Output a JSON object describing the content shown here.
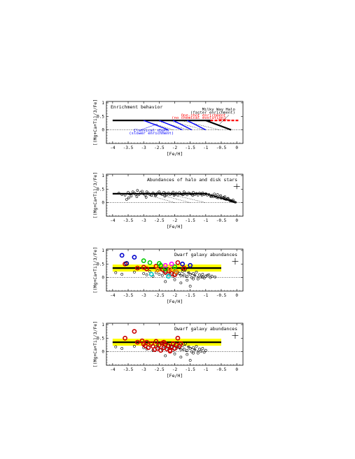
{
  "chart_data": [
    {
      "type": "line",
      "title": "Enrichment behavior",
      "xlabel": "[Fe/H]",
      "ylabel": "[(Mg+Ca+Ti)/3/Fe]",
      "xlim": [
        -4.2,
        0.2
      ],
      "ylim": [
        -0.5,
        1.05
      ],
      "xticks": [
        -4,
        -3.5,
        -3,
        -2.5,
        -2,
        -1.5,
        -1,
        -0.5,
        0
      ],
      "xtick_labels": [
        "-4",
        "-3.5",
        "-3",
        "-2.5",
        "-2",
        "-1.5",
        "-1",
        "-0.5",
        "0"
      ],
      "yticks": [
        0,
        0.5,
        1
      ],
      "ytick_labels": [
        "0",
        "0.5",
        "1"
      ],
      "plateau": {
        "x": [
          -4.0,
          -0.85
        ],
        "y": 0.35
      },
      "zero_line": 0,
      "series": [
        {
          "name": "Milky Way Halo (faster enrichment)",
          "color": "#000000",
          "width": 2.2,
          "x": [
            -1.0,
            -0.18
          ],
          "y": [
            0.35,
            0.0
          ]
        },
        {
          "name": "One-shot enrichment (no chemical evolution)",
          "color": "#ff0000",
          "dashed": true,
          "width": 2.2,
          "x": [
            -0.85,
            0.05
          ],
          "y": [
            0.35,
            0.35
          ]
        }
      ],
      "slopes_blue": [
        {
          "x": [
            -3.0,
            -2.2
          ],
          "y": [
            0.35,
            0.0
          ]
        },
        {
          "x": [
            -2.5,
            -1.75
          ],
          "y": [
            0.35,
            0.0
          ]
        },
        {
          "x": [
            -2.05,
            -1.45
          ],
          "y": [
            0.35,
            0.0
          ]
        },
        {
          "x": [
            -1.6,
            -1.0
          ],
          "y": [
            0.35,
            0.0
          ]
        }
      ],
      "blue_color": "#0000ff",
      "hatch_dotted": [
        {
          "x": [
            -3.0,
            -2.05
          ],
          "y": [
            0.35,
            0.0
          ]
        },
        {
          "x": [
            -2.6,
            -1.55
          ],
          "y": [
            0.35,
            0.0
          ]
        },
        {
          "x": [
            -2.2,
            -1.05
          ],
          "y": [
            0.35,
            0.0
          ]
        },
        {
          "x": [
            -1.8,
            -0.55
          ],
          "y": [
            0.35,
            0.0
          ]
        }
      ],
      "annotations": [
        {
          "text": "Milky Way Halo",
          "color": "#000000",
          "x": -0.05,
          "y": 0.72,
          "anchor": "end"
        },
        {
          "text": "(faster enrichment)",
          "color": "#000000",
          "x": -0.05,
          "y": 0.6,
          "anchor": "end"
        },
        {
          "text": "One-shot enrichment",
          "color": "#ff0000",
          "x": -0.35,
          "y": 0.5,
          "anchor": "end"
        },
        {
          "text": "(no chemical evolution)",
          "color": "#ff0000",
          "x": -0.35,
          "y": 0.4,
          "anchor": "end"
        },
        {
          "text": "Classical dSphs",
          "color": "#0000ff",
          "x": -2.75,
          "y": -0.06,
          "anchor": "middle"
        },
        {
          "text": "(slower enrichment)",
          "color": "#0000ff",
          "x": -2.75,
          "y": -0.17,
          "anchor": "middle"
        }
      ]
    },
    {
      "type": "scatter",
      "title": "Abundances of halo and disk stars",
      "xlabel": "[Fe/H]",
      "ylabel": "[(Mg+Ca+Ti)/3/Fe]",
      "xlim": [
        -4.2,
        0.2
      ],
      "ylim": [
        -0.5,
        1.05
      ],
      "xticks": [
        -4,
        -3.5,
        -3,
        -2.5,
        -2,
        -1.5,
        -1,
        -0.5,
        0
      ],
      "xtick_labels": [
        "-4",
        "-3.5",
        "-3",
        "-2.5",
        "-2",
        "-1.5",
        "-1",
        "-0.5",
        "0"
      ],
      "yticks": [
        0,
        0.5,
        1
      ],
      "ytick_labels": [
        "0",
        "0.5",
        "1"
      ],
      "plateau": {
        "x": [
          -4.0,
          -0.95
        ],
        "y": 0.33
      },
      "zero_line": 0,
      "knee_line": {
        "x": [
          -1.0,
          0.0
        ],
        "y": [
          0.33,
          0.0
        ]
      },
      "hatch_dotted": [
        {
          "x": [
            -3.0,
            -2.0
          ],
          "y": [
            0.33,
            0.0
          ]
        },
        {
          "x": [
            -2.6,
            -1.5
          ],
          "y": [
            0.33,
            0.0
          ]
        },
        {
          "x": [
            -2.2,
            -1.0
          ],
          "y": [
            0.33,
            0.0
          ]
        }
      ],
      "error_bar": {
        "x": 0.0,
        "y": 0.6,
        "xerr": 0.1,
        "yerr": 0.1
      },
      "points": {
        "x": [
          -3.8,
          -3.7,
          -3.6,
          -3.55,
          -3.5,
          -3.45,
          -3.4,
          -3.35,
          -3.3,
          -3.25,
          -3.2,
          -3.15,
          -3.1,
          -3.05,
          -3.0,
          -2.95,
          -2.9,
          -2.85,
          -2.8,
          -2.75,
          -2.7,
          -2.65,
          -2.6,
          -2.55,
          -2.5,
          -2.45,
          -2.4,
          -2.35,
          -2.3,
          -2.25,
          -2.2,
          -2.15,
          -2.1,
          -2.05,
          -2.0,
          -1.95,
          -1.9,
          -1.85,
          -1.8,
          -1.75,
          -1.7,
          -1.65,
          -1.6,
          -1.55,
          -1.5,
          -1.45,
          -1.4,
          -1.35,
          -1.3,
          -1.25,
          -1.2,
          -1.15,
          -1.1,
          -1.05,
          -1.0,
          -0.95,
          -0.9,
          -0.85,
          -0.8,
          -0.75,
          -0.7,
          -0.65,
          -0.6,
          -0.55,
          -0.5,
          -0.45,
          -0.4,
          -0.35,
          -0.3,
          -0.25,
          -0.2,
          -0.15,
          -0.1,
          -0.05,
          -3.48,
          -3.22,
          -2.92,
          -2.62,
          -2.32,
          -2.02,
          -1.72,
          -1.42,
          -1.12,
          -0.82,
          -0.62,
          -0.42,
          -0.32,
          -0.22,
          -0.12,
          -0.72,
          -0.52,
          -0.38,
          -0.28,
          -0.18
        ],
        "y": [
          0.35,
          0.3,
          0.28,
          0.12,
          0.38,
          0.32,
          0.25,
          0.4,
          0.35,
          0.3,
          0.45,
          0.3,
          0.38,
          0.42,
          0.33,
          0.28,
          0.4,
          0.35,
          0.3,
          0.27,
          0.36,
          0.32,
          0.29,
          0.35,
          0.4,
          0.33,
          0.3,
          0.38,
          0.34,
          0.29,
          0.36,
          0.3,
          0.33,
          0.39,
          0.31,
          0.35,
          0.28,
          0.37,
          0.32,
          0.3,
          0.4,
          0.34,
          0.29,
          0.36,
          0.33,
          0.31,
          0.38,
          0.3,
          0.34,
          0.28,
          0.35,
          0.32,
          0.36,
          0.3,
          0.33,
          0.28,
          0.31,
          0.25,
          0.27,
          0.22,
          0.24,
          0.2,
          0.18,
          0.22,
          0.16,
          0.18,
          0.14,
          0.12,
          0.15,
          0.1,
          0.08,
          0.06,
          0.04,
          0.02,
          0.18,
          0.22,
          0.2,
          0.26,
          0.24,
          0.27,
          0.3,
          0.27,
          0.28,
          0.22,
          0.3,
          0.2,
          0.12,
          0.08,
          0.1,
          0.32,
          0.26,
          0.22,
          0.16,
          0.06
        ]
      }
    },
    {
      "type": "scatter",
      "title": "Dwarf galaxy abundances",
      "xlabel": "[Fe/H]",
      "ylabel": "[(Mg+Ca+Ti)/3/Fe]",
      "xlim": [
        -4.2,
        0.2
      ],
      "ylim": [
        -0.5,
        1.05
      ],
      "xticks": [
        -4,
        -3.5,
        -3,
        -2.5,
        -2,
        -1.5,
        -1,
        -0.5,
        0
      ],
      "xtick_labels": [
        "-4",
        "-3.5",
        "-3",
        "-2.5",
        "-2",
        "-1.5",
        "-1",
        "-0.5",
        "0"
      ],
      "yticks": [
        0,
        0.5,
        1
      ],
      "ytick_labels": [
        "0",
        "0.5",
        "1"
      ],
      "band": {
        "x": [
          -4.0,
          -0.5
        ],
        "y": [
          0.22,
          0.48
        ],
        "color": "#ffff00"
      },
      "plateau": {
        "x": [
          -4.0,
          -0.5
        ],
        "y": 0.35
      },
      "zero_line": 0,
      "error_bar": {
        "x": -0.05,
        "y": 0.6,
        "xerr": 0.1,
        "yerr": 0.12
      },
      "open_points": {
        "x": [
          -3.9,
          -3.7,
          -3.3,
          -3.0,
          -2.9,
          -2.8,
          -2.7,
          -2.6,
          -2.55,
          -2.5,
          -2.45,
          -2.4,
          -2.35,
          -2.3,
          -2.25,
          -2.2,
          -2.15,
          -2.1,
          -2.05,
          -2.0,
          -1.95,
          -1.9,
          -1.85,
          -1.8,
          -1.75,
          -1.7,
          -1.65,
          -1.6,
          -1.55,
          -1.5,
          -1.45,
          -1.4,
          -1.35,
          -1.3,
          -1.25,
          -1.2,
          -1.15,
          -1.1,
          -1.05,
          -1.0,
          -0.95,
          -0.9,
          -0.85,
          -0.8,
          -0.7,
          -2.3,
          -2.0,
          -1.8,
          -1.6,
          -1.4,
          -1.5,
          -1.1
        ],
        "y": [
          0.18,
          0.12,
          0.2,
          0.15,
          0.1,
          0.22,
          0.05,
          0.18,
          0.25,
          0.12,
          0.3,
          0.08,
          0.2,
          0.15,
          0.28,
          0.1,
          0.22,
          0.18,
          0.05,
          0.25,
          0.12,
          0.2,
          0.15,
          0.08,
          0.22,
          0.1,
          0.3,
          0.05,
          0.18,
          0.12,
          0.0,
          0.15,
          0.08,
          0.2,
          -0.05,
          0.1,
          0.02,
          0.12,
          -0.02,
          0.05,
          0.08,
          0.1,
          0.0,
          0.05,
          0.02,
          -0.15,
          -0.08,
          -0.2,
          -0.1,
          -0.05,
          -0.32,
          0.02
        ]
      },
      "colored_points": [
        {
          "color": "#0000cc",
          "x": [
            -3.7,
            -3.3,
            -1.5,
            -1.75
          ],
          "y": [
            0.82,
            0.75,
            0.45,
            0.5
          ]
        },
        {
          "color": "#cc0000",
          "x": [
            -3.6,
            -3.2,
            -3.0,
            -2.9,
            -2.6,
            -2.4,
            -2.3,
            -2.2,
            -2.1,
            -2.0,
            -1.9,
            -1.7
          ],
          "y": [
            0.5,
            0.35,
            0.38,
            0.32,
            0.42,
            0.3,
            0.2,
            0.25,
            0.15,
            0.1,
            0.55,
            0.35
          ]
        },
        {
          "color": "#00cc00",
          "x": [
            -3.0,
            -2.8,
            -2.5,
            -2.45,
            -2.3,
            -2.0
          ],
          "y": [
            0.62,
            0.55,
            0.52,
            0.45,
            0.32,
            0.4
          ]
        },
        {
          "color": "#ff8800",
          "x": [
            -2.55,
            -2.15,
            -1.95
          ],
          "y": [
            0.28,
            0.3,
            0.22
          ]
        },
        {
          "color": "#ff00ff",
          "x": [
            -2.3,
            -2.1
          ],
          "y": [
            0.45,
            0.5
          ]
        },
        {
          "color": "#00cccc",
          "x": [
            -2.75,
            -2.2
          ],
          "y": [
            0.12,
            0.05
          ]
        },
        {
          "color": "#000080",
          "x": [
            -3.55
          ],
          "y": [
            0.52
          ]
        }
      ],
      "slopes_dashed": [
        {
          "x": [
            -2.4,
            -1.6
          ],
          "y": [
            0.35,
            0.0
          ]
        },
        {
          "x": [
            -1.8,
            -1.2
          ],
          "y": [
            0.3,
            0.0
          ]
        }
      ]
    },
    {
      "type": "scatter",
      "title": "Dwarf galaxy abundances",
      "xlabel": "[Fe/H]",
      "ylabel": "[(Mg+Ca+Ti)/3/Fe]",
      "xlim": [
        -4.2,
        0.2
      ],
      "ylim": [
        -0.5,
        1.05
      ],
      "xticks": [
        -4,
        -3.5,
        -3,
        -2.5,
        -2,
        -1.5,
        -1,
        -0.5,
        0
      ],
      "xtick_labels": [
        "-4",
        "-3.5",
        "-3",
        "-2.5",
        "-2",
        "-1.5",
        "-1",
        "-0.5",
        "0"
      ],
      "yticks": [
        0,
        0.5,
        1
      ],
      "ytick_labels": [
        "0",
        "0.5",
        "1"
      ],
      "band": {
        "x": [
          -4.0,
          -0.5
        ],
        "y": [
          0.22,
          0.48
        ],
        "color": "#ffff00"
      },
      "plateau": {
        "x": [
          -4.0,
          -0.5
        ],
        "y": 0.35
      },
      "zero_line": 0,
      "error_bar": {
        "x": -0.05,
        "y": 0.6,
        "xerr": 0.1,
        "yerr": 0.12
      },
      "open_points": {
        "x": [
          -3.9,
          -3.7,
          -3.3,
          -3.0,
          -2.9,
          -2.8,
          -2.7,
          -2.6,
          -2.55,
          -2.5,
          -2.45,
          -2.4,
          -2.35,
          -2.3,
          -2.25,
          -2.2,
          -2.15,
          -2.1,
          -2.05,
          -2.0,
          -1.95,
          -1.9,
          -1.85,
          -1.8,
          -1.75,
          -1.7,
          -1.65,
          -1.6,
          -1.55,
          -1.5,
          -1.45,
          -1.4,
          -1.35,
          -1.3,
          -1.25,
          -1.2,
          -1.15,
          -1.1,
          -1.05,
          -1.0,
          -2.3,
          -2.0,
          -1.8,
          -1.6,
          -1.4,
          -1.5
        ],
        "y": [
          0.18,
          0.12,
          0.2,
          0.15,
          0.1,
          0.22,
          0.05,
          0.18,
          0.25,
          0.12,
          0.3,
          0.08,
          0.2,
          0.15,
          0.28,
          0.1,
          0.22,
          0.18,
          0.05,
          0.25,
          0.12,
          0.2,
          0.15,
          0.08,
          0.22,
          0.1,
          0.3,
          0.05,
          0.18,
          0.12,
          0.0,
          0.15,
          0.08,
          0.2,
          -0.05,
          0.1,
          0.02,
          0.12,
          -0.02,
          0.05,
          -0.15,
          -0.08,
          -0.2,
          -0.1,
          -0.05,
          -0.32
        ]
      },
      "colored_points": [
        {
          "color": "#cc0000",
          "x": [
            -3.6,
            -3.3,
            -3.2,
            -3.05,
            -3.0,
            -2.9,
            -2.85,
            -2.75,
            -2.7,
            -2.6,
            -2.55,
            -2.5,
            -2.45,
            -2.4,
            -2.35,
            -2.3,
            -2.25,
            -2.2,
            -2.15,
            -2.1,
            -2.05,
            -2.0,
            -1.95,
            -1.9,
            -1.85,
            -1.8,
            -2.65,
            -2.95,
            -2.35,
            -2.15
          ],
          "y": [
            0.5,
            0.75,
            0.35,
            0.4,
            0.28,
            0.35,
            0.15,
            0.3,
            0.2,
            0.38,
            0.12,
            0.25,
            0.05,
            0.32,
            0.15,
            0.28,
            0.1,
            0.22,
            0.05,
            0.18,
            0.3,
            0.12,
            0.25,
            0.5,
            0.2,
            0.3,
            0.08,
            0.22,
            0.35,
            0.02
          ]
        }
      ],
      "slopes_dashed": [
        {
          "x": [
            -2.4,
            -1.6
          ],
          "y": [
            0.35,
            0.0
          ]
        },
        {
          "x": [
            -1.8,
            -1.2
          ],
          "y": [
            0.3,
            0.0
          ]
        }
      ]
    }
  ]
}
